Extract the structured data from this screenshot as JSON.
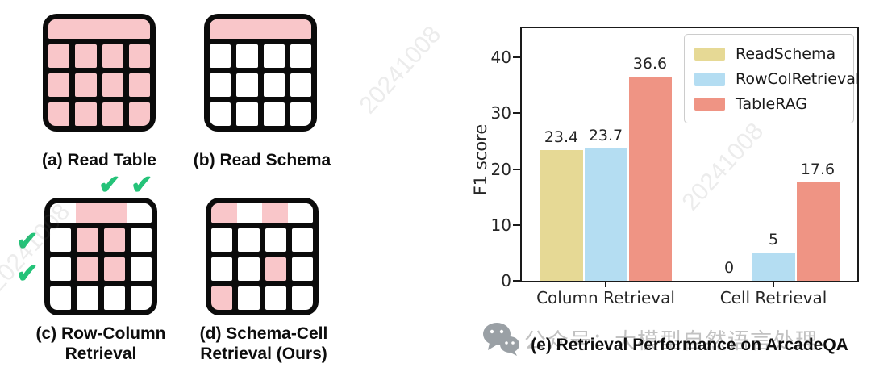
{
  "colors": {
    "table_pink": "#f9c6c9",
    "table_border": "#0b0b0b",
    "check_green": "#25c379",
    "readschema": "#e6d995",
    "rowcolretrieval": "#b4ddf2",
    "tablerag": "#ef9484",
    "axis_text": "#262626",
    "watermark_gray": "#c2c2c2"
  },
  "diagrams": {
    "check_glyph": "✔",
    "items": [
      {
        "caption": "(a) Read Table",
        "caption_line2": "",
        "header": [
          "p",
          "p",
          "p",
          "p"
        ],
        "rows": [
          [
            "p",
            "p",
            "p",
            "p"
          ],
          [
            "p",
            "p",
            "p",
            "p"
          ],
          [
            "p",
            "p",
            "p",
            "p"
          ]
        ]
      },
      {
        "caption": "(b) Read Schema",
        "caption_line2": "",
        "header": [
          "p",
          "p",
          "p",
          "p"
        ],
        "rows": [
          [
            "w",
            "w",
            "w",
            "w"
          ],
          [
            "w",
            "w",
            "w",
            "w"
          ],
          [
            "w",
            "w",
            "w",
            "w"
          ]
        ]
      },
      {
        "caption": "(c) Row-Column",
        "caption_line2": "Retrieval",
        "header": [
          "w",
          "p",
          "p",
          "w"
        ],
        "rows": [
          [
            "w",
            "p",
            "p",
            "w"
          ],
          [
            "w",
            "p",
            "p",
            "w"
          ],
          [
            "w",
            "w",
            "w",
            "w"
          ]
        ]
      },
      {
        "caption": "(d) Schema-Cell",
        "caption_line2": "Retrieval (Ours)",
        "header": [
          "p",
          "w",
          "p",
          "w"
        ],
        "rows": [
          [
            "w",
            "w",
            "w",
            "w"
          ],
          [
            "w",
            "w",
            "p",
            "w"
          ],
          [
            "p",
            "w",
            "w",
            "w"
          ]
        ]
      }
    ]
  },
  "chart_data": {
    "type": "bar",
    "title": "(e) Retrieval Performance on ArcadeQA",
    "xlabel": "",
    "ylabel": "F1 score",
    "categories": [
      "Column Retrieval",
      "Cell Retrieval"
    ],
    "series": [
      {
        "name": "ReadSchema",
        "color": "#e6d995",
        "values": [
          23.4,
          0
        ]
      },
      {
        "name": "RowColRetrieval",
        "color": "#b4ddf2",
        "values": [
          23.7,
          5
        ]
      },
      {
        "name": "TableRAG",
        "color": "#ef9484",
        "values": [
          36.6,
          17.6
        ]
      }
    ],
    "yticks": [
      0,
      10,
      20,
      30,
      40
    ],
    "ylim": [
      0,
      45.2
    ],
    "grid": false,
    "legend_position": "upper right",
    "bar_value_labels_shown": true
  },
  "watermark": {
    "account_text": "公众号：大模型自然语言处理",
    "stamps": [
      "20241008",
      "20241008",
      "20241008"
    ]
  }
}
